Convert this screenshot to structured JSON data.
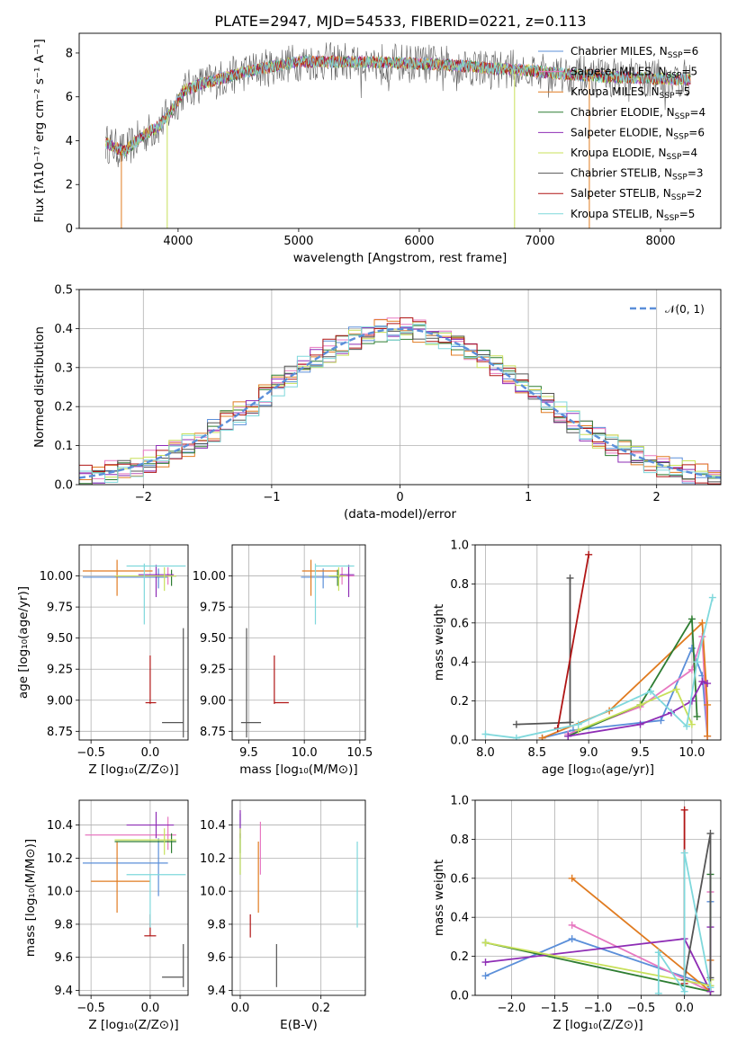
{
  "title": "PLATE=2947, MJD=54533, FIBERID=0221, z=0.113",
  "colors": {
    "Chabrier MILES": "#5b8fd9",
    "Salpeter MILES": "#e779c1",
    "Kroupa MILES": "#e07b20",
    "Chabrier ELODIE": "#2e7d32",
    "Salpeter ELODIE": "#8e2db5",
    "Kroupa ELODIE": "#c8e05a",
    "Chabrier STELIB": "#555555",
    "Salpeter STELIB": "#b01515",
    "Kroupa STELIB": "#7fd8dc"
  },
  "legend": [
    {
      "name": "Chabrier MILES",
      "pre": "Chabrier MILES, N",
      "sub": "SSP",
      "post": "=6"
    },
    {
      "name": "Salpeter MILES",
      "pre": "Salpeter MILES, N",
      "sub": "SSP",
      "post": "=5"
    },
    {
      "name": "Kroupa MILES",
      "pre": "Kroupa MILES, N",
      "sub": "SSP",
      "post": "=5"
    },
    {
      "name": "Chabrier ELODIE",
      "pre": "Chabrier ELODIE, N",
      "sub": "SSP",
      "post": "=4"
    },
    {
      "name": "Salpeter ELODIE",
      "pre": "Salpeter ELODIE, N",
      "sub": "SSP",
      "post": "=6"
    },
    {
      "name": "Kroupa ELODIE",
      "pre": "Kroupa ELODIE, N",
      "sub": "SSP",
      "post": "=4"
    },
    {
      "name": "Chabrier STELIB",
      "pre": "Chabrier STELIB, N",
      "sub": "SSP",
      "post": "=3"
    },
    {
      "name": "Salpeter STELIB",
      "pre": "Salpeter STELIB, N",
      "sub": "SSP",
      "post": "=2"
    },
    {
      "name": "Kroupa STELIB",
      "pre": "Kroupa STELIB, N",
      "sub": "SSP",
      "post": "=5"
    }
  ],
  "chart_data": [
    {
      "id": "spectrum",
      "type": "line",
      "xlabel": "wavelength [Angstrom, rest frame]",
      "ylabel": "Flux [fλ10⁻¹⁷ erg cm⁻² s⁻¹ A⁻¹]",
      "xlim": [
        3180,
        8500
      ],
      "ylim": [
        0,
        8.9
      ],
      "xticks": [
        4000,
        5000,
        6000,
        7000,
        8000
      ],
      "yticks": [
        0,
        2,
        4,
        6,
        8
      ],
      "grid": false,
      "continuum": {
        "x": [
          3400,
          3550,
          3700,
          3850,
          3950,
          4050,
          4200,
          4400,
          4600,
          4800,
          5000,
          5200,
          5500,
          5800,
          6100,
          6400,
          6600,
          6800,
          7000,
          7300,
          7600,
          7900,
          8100,
          8250
        ],
        "y": [
          3.9,
          3.5,
          4.2,
          4.7,
          5.4,
          6.3,
          6.6,
          6.9,
          7.2,
          7.4,
          7.6,
          7.6,
          7.6,
          7.55,
          7.5,
          7.4,
          7.3,
          7.25,
          7.15,
          7.0,
          6.9,
          6.85,
          6.8,
          6.8
        ]
      },
      "dips": [
        {
          "x": 3530,
          "y": 0
        },
        {
          "x": 3910,
          "y": 0
        },
        {
          "x": 6790,
          "y": 0
        },
        {
          "x": 7410,
          "y": 0
        }
      ]
    },
    {
      "id": "residuals",
      "type": "histogram",
      "xlabel": "(data-model)/error",
      "ylabel": "Normed distribution",
      "xlim": [
        -2.5,
        2.5
      ],
      "ylim": [
        0,
        0.5
      ],
      "xticks": [
        -2,
        -1,
        0,
        1,
        2
      ],
      "yticks": [
        0.0,
        0.1,
        0.2,
        0.3,
        0.4,
        0.5
      ],
      "grid": true,
      "bin_width": 0.1,
      "reference": {
        "name": "𝒩(0, 1)",
        "mean": 0,
        "sigma": 1,
        "color": "#5b8fd9"
      },
      "legend_position": "upper right"
    },
    {
      "id": "age-vs-Z",
      "type": "errorbar",
      "xlabel": "Z [log₁₀(Z/Z⊙)]",
      "ylabel": "age  [log₁₀(age/yr)]",
      "xlim": [
        -0.6,
        0.32
      ],
      "ylim": [
        8.68,
        10.25
      ],
      "xticks": [
        -0.5,
        0.0
      ],
      "yticks": [
        8.75,
        9.0,
        9.25,
        9.5,
        9.75,
        10.0
      ],
      "grid": true,
      "points": [
        {
          "s": "Chabrier MILES",
          "x": 0.07,
          "y": 9.99,
          "xe": [
            -0.57,
            0.15
          ],
          "ye": [
            9.9,
            10.06
          ]
        },
        {
          "s": "Salpeter MILES",
          "x": 0.15,
          "y": 10.0,
          "xe": [
            -0.3,
            0.22
          ],
          "ye": [
            9.93,
            10.07
          ]
        },
        {
          "s": "Kroupa MILES",
          "x": -0.28,
          "y": 10.04,
          "xe": [
            -0.57,
            0.02
          ],
          "ye": [
            9.84,
            10.13
          ]
        },
        {
          "s": "Chabrier ELODIE",
          "x": 0.18,
          "y": 10.0,
          "xe": [
            0.05,
            0.22
          ],
          "ye": [
            9.92,
            10.05
          ]
        },
        {
          "s": "Salpeter ELODIE",
          "x": 0.05,
          "y": 10.01,
          "xe": [
            -0.1,
            0.2
          ],
          "ye": [
            9.83,
            10.09
          ]
        },
        {
          "s": "Kroupa ELODIE",
          "x": 0.12,
          "y": 10.0,
          "xe": [
            -0.3,
            0.22
          ],
          "ye": [
            9.88,
            10.07
          ]
        },
        {
          "s": "Chabrier STELIB",
          "x": 0.28,
          "y": 8.82,
          "xe": [
            0.1,
            0.28
          ],
          "ye": [
            8.7,
            9.58
          ]
        },
        {
          "s": "Salpeter STELIB",
          "x": 0.0,
          "y": 8.98,
          "xe": [
            -0.04,
            0.05
          ],
          "ye": [
            8.97,
            9.36
          ]
        },
        {
          "s": "Kroupa STELIB",
          "x": -0.05,
          "y": 10.08,
          "xe": [
            -0.2,
            0.3
          ],
          "ye": [
            9.61,
            10.1
          ]
        }
      ]
    },
    {
      "id": "age-vs-mass",
      "type": "errorbar",
      "xlabel": "mass [log₁₀(M/M⊙)]",
      "ylabel": "",
      "xlim": [
        9.35,
        10.55
      ],
      "ylim": [
        8.68,
        10.25
      ],
      "xticks": [
        9.5,
        10.0,
        10.5
      ],
      "yticks": [
        8.75,
        9.0,
        9.25,
        9.5,
        9.75,
        10.0
      ],
      "grid": true,
      "points": [
        {
          "s": "Chabrier MILES",
          "x": 10.17,
          "y": 9.99,
          "xe": [
            9.97,
            10.32
          ],
          "ye": [
            9.9,
            10.06
          ]
        },
        {
          "s": "Salpeter MILES",
          "x": 10.34,
          "y": 10.0,
          "xe": [
            10.25,
            10.45
          ],
          "ye": [
            9.93,
            10.07
          ]
        },
        {
          "s": "Kroupa MILES",
          "x": 10.06,
          "y": 10.04,
          "xe": [
            9.98,
            10.3
          ],
          "ye": [
            9.84,
            10.13
          ]
        },
        {
          "s": "Chabrier ELODIE",
          "x": 10.3,
          "y": 10.0,
          "xe": [
            10.23,
            10.35
          ],
          "ye": [
            9.92,
            10.05
          ]
        },
        {
          "s": "Salpeter ELODIE",
          "x": 10.4,
          "y": 10.01,
          "xe": [
            10.32,
            10.45
          ],
          "ye": [
            9.83,
            10.09
          ]
        },
        {
          "s": "Kroupa ELODIE",
          "x": 10.31,
          "y": 10.0,
          "xe": [
            10.22,
            10.38
          ],
          "ye": [
            9.88,
            10.07
          ]
        },
        {
          "s": "Chabrier STELIB",
          "x": 9.48,
          "y": 8.82,
          "xe": [
            9.43,
            9.61
          ],
          "ye": [
            8.7,
            9.58
          ]
        },
        {
          "s": "Salpeter STELIB",
          "x": 9.73,
          "y": 8.98,
          "xe": [
            9.73,
            9.86
          ],
          "ye": [
            8.97,
            9.36
          ]
        },
        {
          "s": "Kroupa STELIB",
          "x": 10.1,
          "y": 10.08,
          "xe": [
            10.1,
            10.45
          ],
          "ye": [
            9.61,
            10.1
          ]
        }
      ]
    },
    {
      "id": "weight-vs-age",
      "type": "line",
      "xlabel": "age  [log₁₀(age/yr)]",
      "ylabel": "mass weight",
      "xlim": [
        7.9,
        10.28
      ],
      "ylim": [
        0,
        1.0
      ],
      "xticks": [
        8.0,
        8.5,
        9.0,
        9.5,
        10.0
      ],
      "yticks": [
        0.0,
        0.2,
        0.4,
        0.6,
        0.8,
        1.0
      ],
      "grid": true,
      "series": [
        {
          "s": "Chabrier MILES",
          "x": [
            8.55,
            8.85,
            9.7,
            10.0,
            10.1,
            10.15
          ],
          "y": [
            0.01,
            0.05,
            0.1,
            0.47,
            0.33,
            0.02
          ]
        },
        {
          "s": "Salpeter MILES",
          "x": [
            8.8,
            9.5,
            10.0,
            10.1,
            10.15
          ],
          "y": [
            0.03,
            0.17,
            0.36,
            0.53,
            0.02
          ]
        },
        {
          "s": "Kroupa MILES",
          "x": [
            8.55,
            9.2,
            10.1,
            10.15,
            10.15
          ],
          "y": [
            0.01,
            0.15,
            0.6,
            0.18,
            0.02
          ]
        },
        {
          "s": "Chabrier ELODIE",
          "x": [
            8.8,
            9.5,
            10.0,
            10.05
          ],
          "y": [
            0.02,
            0.18,
            0.62,
            0.12
          ]
        },
        {
          "s": "Salpeter ELODIE",
          "x": [
            8.8,
            9.5,
            9.8,
            10.0,
            10.1,
            10.15
          ],
          "y": [
            0.02,
            0.08,
            0.14,
            0.2,
            0.3,
            0.29
          ]
        },
        {
          "s": "Kroupa ELODIE",
          "x": [
            8.9,
            9.5,
            9.85,
            10.0
          ],
          "y": [
            0.05,
            0.18,
            0.26,
            0.08
          ]
        },
        {
          "s": "Chabrier STELIB",
          "x": [
            8.3,
            8.82,
            8.82
          ],
          "y": [
            0.08,
            0.09,
            0.83
          ]
        },
        {
          "s": "Salpeter STELIB",
          "x": [
            8.7,
            9.0
          ],
          "y": [
            0.06,
            0.95
          ]
        },
        {
          "s": "Kroupa STELIB",
          "x": [
            8.0,
            8.3,
            8.9,
            9.6,
            9.95,
            10.05,
            10.2
          ],
          "y": [
            0.03,
            0.01,
            0.08,
            0.25,
            0.07,
            0.4,
            0.73
          ]
        }
      ]
    },
    {
      "id": "mass-vs-Z",
      "type": "errorbar",
      "xlabel": "Z [log₁₀(Z/Z⊙)]",
      "ylabel": "mass [log₁₀(M/M⊙)]",
      "xlim": [
        -0.6,
        0.32
      ],
      "ylim": [
        9.37,
        10.55
      ],
      "xticks": [
        -0.5,
        0.0
      ],
      "yticks": [
        9.4,
        9.6,
        9.8,
        10.0,
        10.2,
        10.4
      ],
      "grid": true,
      "points": [
        {
          "s": "Chabrier MILES",
          "x": 0.07,
          "y": 10.17,
          "xe": [
            -0.57,
            0.15
          ],
          "ye": [
            9.97,
            10.32
          ]
        },
        {
          "s": "Salpeter MILES",
          "x": 0.15,
          "y": 10.34,
          "xe": [
            -0.55,
            0.22
          ],
          "ye": [
            10.25,
            10.45
          ]
        },
        {
          "s": "Kroupa MILES",
          "x": -0.28,
          "y": 10.06,
          "xe": [
            -0.5,
            0.0
          ],
          "ye": [
            9.87,
            10.3
          ]
        },
        {
          "s": "Chabrier ELODIE",
          "x": 0.18,
          "y": 10.3,
          "xe": [
            -0.3,
            0.22
          ],
          "ye": [
            10.23,
            10.35
          ]
        },
        {
          "s": "Salpeter ELODIE",
          "x": 0.05,
          "y": 10.4,
          "xe": [
            -0.2,
            0.2
          ],
          "ye": [
            10.32,
            10.48
          ]
        },
        {
          "s": "Kroupa ELODIE",
          "x": 0.12,
          "y": 10.31,
          "xe": [
            -0.3,
            0.22
          ],
          "ye": [
            10.22,
            10.38
          ]
        },
        {
          "s": "Chabrier STELIB",
          "x": 0.28,
          "y": 9.48,
          "xe": [
            0.1,
            0.28
          ],
          "ye": [
            9.42,
            9.68
          ]
        },
        {
          "s": "Salpeter STELIB",
          "x": 0.0,
          "y": 9.73,
          "xe": [
            -0.05,
            0.05
          ],
          "ye": [
            9.73,
            9.86
          ]
        },
        {
          "s": "Kroupa STELIB",
          "x": 0.0,
          "y": 10.1,
          "xe": [
            -0.2,
            0.3
          ],
          "ye": [
            9.78,
            10.1
          ]
        }
      ]
    },
    {
      "id": "mass-vs-EBV",
      "type": "errorbar",
      "xlabel": "E(B-V)",
      "ylabel": "",
      "xlim": [
        -0.02,
        0.31
      ],
      "ylim": [
        9.37,
        10.55
      ],
      "xticks": [
        0.0,
        0.2
      ],
      "yticks": [
        9.4,
        9.6,
        9.8,
        10.0,
        10.2,
        10.4
      ],
      "grid": true,
      "points": [
        {
          "s": "Chabrier MILES",
          "x": 0.0,
          "y": 10.17,
          "ye": [
            10.1,
            10.47
          ]
        },
        {
          "s": "Salpeter MILES",
          "x": 0.05,
          "y": 10.34,
          "ye": [
            10.1,
            10.42
          ]
        },
        {
          "s": "Kroupa MILES",
          "x": 0.045,
          "y": 10.06,
          "ye": [
            9.87,
            10.3
          ]
        },
        {
          "s": "Chabrier ELODIE",
          "x": 0.0,
          "y": 10.3,
          "ye": [
            10.23,
            10.35
          ]
        },
        {
          "s": "Salpeter ELODIE",
          "x": 0.0,
          "y": 10.4,
          "ye": [
            10.32,
            10.49
          ]
        },
        {
          "s": "Kroupa ELODIE",
          "x": 0.0,
          "y": 10.31,
          "ye": [
            10.1,
            10.38
          ]
        },
        {
          "s": "Chabrier STELIB",
          "x": 0.09,
          "y": 9.48,
          "ye": [
            9.42,
            9.68
          ]
        },
        {
          "s": "Salpeter STELIB",
          "x": 0.025,
          "y": 9.73,
          "ye": [
            9.72,
            9.86
          ]
        },
        {
          "s": "Kroupa STELIB",
          "x": 0.29,
          "y": 10.1,
          "ye": [
            9.78,
            10.3
          ]
        }
      ]
    },
    {
      "id": "weight-vs-Z",
      "type": "line",
      "xlabel": "Z [log₁₀(Z/Z⊙)]",
      "ylabel": "mass weight",
      "xlim": [
        -2.42,
        0.42
      ],
      "ylim": [
        0,
        1.0
      ],
      "xticks": [
        -2.0,
        -1.5,
        -1.0,
        -0.5,
        0.0
      ],
      "yticks": [
        0.0,
        0.2,
        0.4,
        0.6,
        0.8,
        1.0
      ],
      "grid": true,
      "series": [
        {
          "s": "Chabrier MILES",
          "x": [
            -2.3,
            -1.3,
            0.3,
            0.3
          ],
          "y": [
            0.1,
            0.29,
            0.05,
            0.48
          ]
        },
        {
          "s": "Salpeter MILES",
          "x": [
            -1.3,
            0.3,
            0.3
          ],
          "y": [
            0.36,
            0.02,
            0.53
          ]
        },
        {
          "s": "Kroupa MILES",
          "x": [
            -1.3,
            0.3,
            0.3
          ],
          "y": [
            0.6,
            0.02,
            0.18
          ]
        },
        {
          "s": "Chabrier ELODIE",
          "x": [
            -2.3,
            0.3,
            0.3
          ],
          "y": [
            0.27,
            0.02,
            0.62
          ]
        },
        {
          "s": "Salpeter ELODIE",
          "x": [
            -2.3,
            0.0,
            0.3,
            0.3
          ],
          "y": [
            0.17,
            0.29,
            0.02,
            0.35
          ]
        },
        {
          "s": "Kroupa ELODIE",
          "x": [
            -2.3,
            0.3,
            0.3
          ],
          "y": [
            0.27,
            0.05,
            0.08
          ]
        },
        {
          "s": "Chabrier STELIB",
          "x": [
            0.0,
            0.3,
            0.3
          ],
          "y": [
            0.08,
            0.83,
            0.09
          ]
        },
        {
          "s": "Salpeter STELIB",
          "x": [
            0.0,
            0.0
          ],
          "y": [
            0.95,
            0.06
          ]
        },
        {
          "s": "Kroupa STELIB",
          "x": [
            -0.3,
            -0.3,
            0.0,
            0.0,
            0.3
          ],
          "y": [
            0.01,
            0.22,
            0.02,
            0.73,
            0.04
          ]
        }
      ]
    }
  ]
}
